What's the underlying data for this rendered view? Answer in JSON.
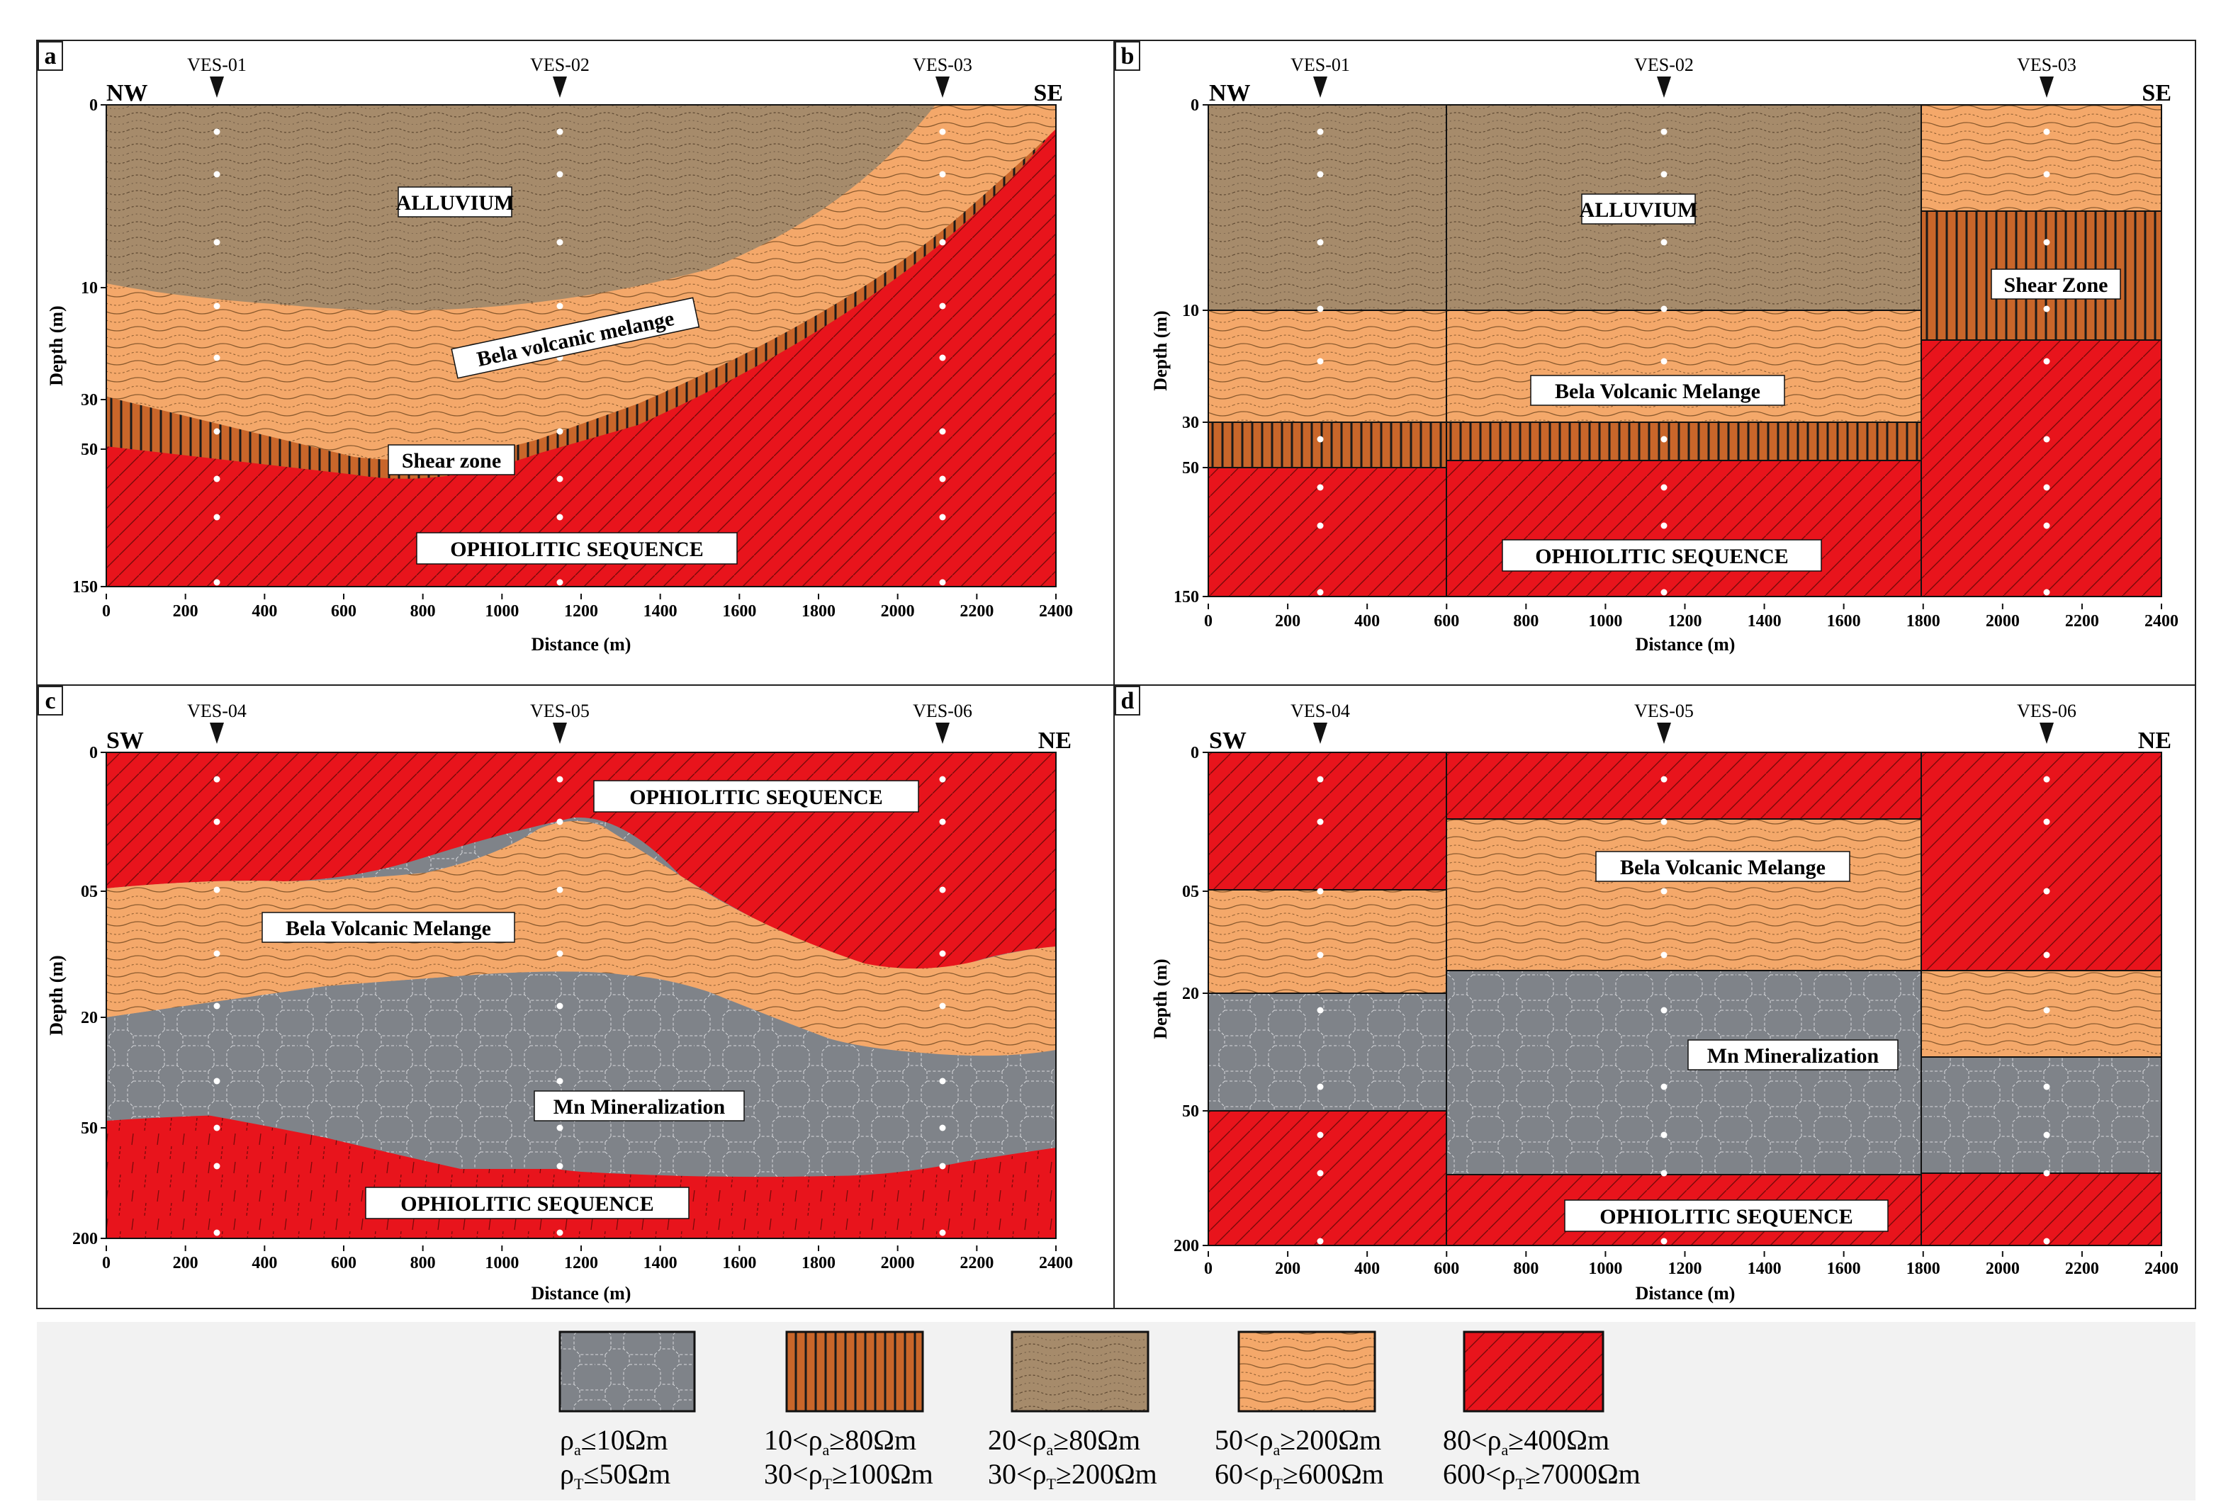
{
  "panels": [
    {
      "id": "a",
      "letter": "a",
      "dir_left": "NW",
      "dir_right": "SE",
      "ves": [
        {
          "name": "VES-01",
          "distance": 270
        },
        {
          "name": "VES-02",
          "distance": 1140
        },
        {
          "name": "VES-03",
          "distance": 2110
        }
      ],
      "depth_ticks": [
        "0",
        "10",
        "30",
        "50",
        "150"
      ],
      "x_ticks": [
        "0",
        "200",
        "400",
        "600",
        "800",
        "1000",
        "1200",
        "1400",
        "1600",
        "1800",
        "2000",
        "2200",
        "2400"
      ],
      "xlabel": "Distance (m)",
      "ylabel": "Depth (m)",
      "labels": {
        "alluvium": "ALLUVIUM",
        "melange": "Bela volcanic melange",
        "shear": "Shear zone",
        "ophiolitic": "OPHIOLITIC SEQUENCE"
      }
    },
    {
      "id": "b",
      "letter": "b",
      "dir_left": "NW",
      "dir_right": "SE",
      "ves": [
        {
          "name": "VES-01",
          "distance": 280
        },
        {
          "name": "VES-02",
          "distance": 1150
        },
        {
          "name": "VES-03",
          "distance": 2120
        }
      ],
      "depth_ticks": [
        "0",
        "10",
        "30",
        "50",
        "150"
      ],
      "x_ticks": [
        "0",
        "200",
        "400",
        "600",
        "800",
        "1000",
        "1200",
        "1400",
        "1600",
        "1800",
        "2000",
        "2200",
        "2400"
      ],
      "xlabel": "Distance (m)",
      "ylabel": "Depth (m)",
      "labels": {
        "alluvium": "ALLUVIUM",
        "melange": "Bela Volcanic Melange",
        "shear": "Shear Zone",
        "ophiolitic": "OPHIOLITIC SEQUENCE"
      }
    },
    {
      "id": "c",
      "letter": "c",
      "dir_left": "SW",
      "dir_right": "NE",
      "ves": [
        {
          "name": "VES-04",
          "distance": 270
        },
        {
          "name": "VES-05",
          "distance": 1140
        },
        {
          "name": "VES-06",
          "distance": 2110
        }
      ],
      "depth_ticks": [
        "0",
        "05",
        "20",
        "50",
        "200"
      ],
      "x_ticks": [
        "0",
        "200",
        "400",
        "600",
        "800",
        "1000",
        "1200",
        "1400",
        "1600",
        "1800",
        "2000",
        "2200",
        "2400"
      ],
      "xlabel": "Distance (m)",
      "ylabel": "Depth (m)",
      "labels": {
        "ophiolitic_top": "OPHIOLITIC SEQUENCE",
        "melange": "Bela Volcanic Melange",
        "mn": "Mn Mineralization",
        "ophiolitic_bottom": "OPHIOLITIC SEQUENCE"
      }
    },
    {
      "id": "d",
      "letter": "d",
      "dir_left": "SW",
      "dir_right": "NE",
      "ves": [
        {
          "name": "VES-04",
          "distance": 280
        },
        {
          "name": "VES-05",
          "distance": 1150
        },
        {
          "name": "VES-06",
          "distance": 2120
        }
      ],
      "depth_ticks": [
        "0",
        "05",
        "20",
        "50",
        "200"
      ],
      "x_ticks": [
        "0",
        "200",
        "400",
        "600",
        "800",
        "1000",
        "1200",
        "1400",
        "1600",
        "1800",
        "2000",
        "2200",
        "2400"
      ],
      "xlabel": "Distance (m)",
      "ylabel": "Depth (m)",
      "labels": {
        "melange": "Bela Volcanic Melange",
        "mn": "Mn Mineralization",
        "ophiolitic": "OPHIOLITIC SEQUENCE"
      }
    }
  ],
  "legend": [
    {
      "pattern": "mn",
      "line1": "ρa ≤ 10Ωm",
      "line2": "ρT ≤ 50Ωm",
      "rho1": "ρ",
      "sub1": "a",
      "rest1": "≤10Ωm",
      "pre2": "",
      "rho2": "ρ",
      "sub2": "T",
      "rest2": "≤50Ωm",
      "pre1": ""
    },
    {
      "pattern": "shear",
      "pre1": "10<",
      "rho1": "ρ",
      "sub1": "a",
      "rest1": "≥80Ωm",
      "pre2": "30<",
      "rho2": "ρ",
      "sub2": "T",
      "rest2": "≥100Ωm"
    },
    {
      "pattern": "alluvium",
      "pre1": "20<",
      "rho1": "ρ",
      "sub1": "a",
      "rest1": "≥80Ωm",
      "pre2": "30<",
      "rho2": "ρ",
      "sub2": "T",
      "rest2": "≥200Ωm"
    },
    {
      "pattern": "melange",
      "pre1": "50<",
      "rho1": "ρ",
      "sub1": "a",
      "rest1": "≥200Ωm",
      "pre2": "60<",
      "rho2": "ρ",
      "sub2": "T",
      "rest2": "≥600Ωm"
    },
    {
      "pattern": "ophiolitic",
      "pre1": "80<",
      "rho1": "ρ",
      "sub1": "a",
      "rest1": "≥400Ωm",
      "pre2": "600<",
      "rho2": "ρ",
      "sub2": "T",
      "rest2": "≥7000Ωm"
    }
  ],
  "colors": {
    "alluvium": "#a68b6b",
    "melange": "#f4a86a",
    "shear": "#c9662a",
    "ophiolitic": "#e8141c",
    "mn": "#7f8389",
    "legend_bg": "#f2f2f2"
  }
}
